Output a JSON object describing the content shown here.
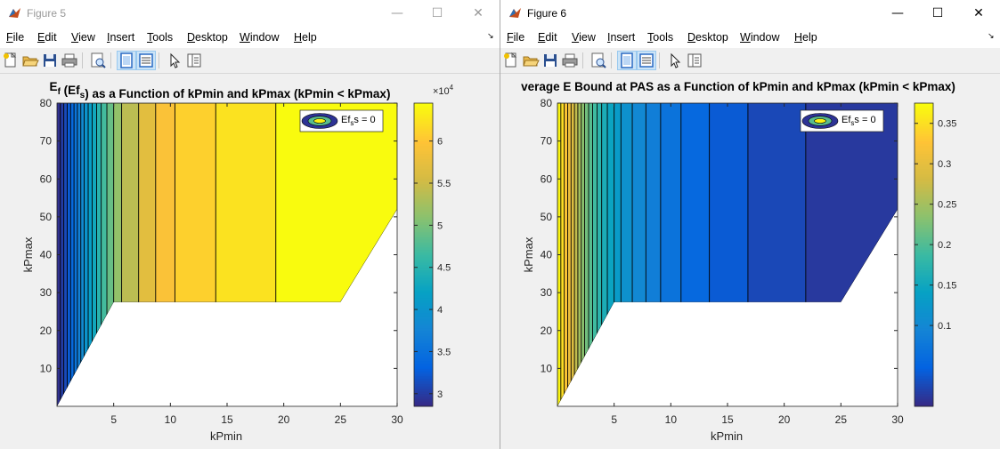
{
  "window_left": {
    "title": "Figure 5",
    "menus": [
      "File",
      "Edit",
      "View",
      "Insert",
      "Tools",
      "Desktop",
      "Window",
      "Help"
    ],
    "menu_mnemonics": [
      "F",
      "E",
      "V",
      "I",
      "T",
      "D",
      "W",
      "H"
    ],
    "controls": {
      "minimize": "—",
      "maximize": "☐",
      "close": "✕"
    }
  },
  "window_right": {
    "title": "Figure 6",
    "menus": [
      "File",
      "Edit",
      "View",
      "Insert",
      "Tools",
      "Desktop",
      "Window",
      "Help"
    ],
    "menu_mnemonics": [
      "F",
      "E",
      "V",
      "I",
      "T",
      "D",
      "W",
      "H"
    ],
    "controls": {
      "minimize": "—",
      "maximize": "☐",
      "close": "✕"
    }
  },
  "toolbar_icons": [
    "new-figure-icon",
    "open-file-icon",
    "save-icon",
    "print-icon",
    "print-preview-icon",
    "dock-figure-icon",
    "property-editor-icon",
    "edit-plot-pointer-icon",
    "plot-browser-icon"
  ],
  "colors": {
    "accent_pressed": "#cce4f7",
    "menu_bg": "#ffffff",
    "window_bg": "#f0f0f0"
  },
  "chart_data": [
    {
      "type": "contourf",
      "title_parts": {
        "main": "E",
        "sub": "f",
        "rest1": " (Ef",
        "sub2": "s",
        "rest2": ") as a Function of kPmin and kPmax (kPmin < kPmax)"
      },
      "xlabel": "kPmin",
      "ylabel": "kPmax",
      "xlim": [
        0,
        30
      ],
      "ylim": [
        0,
        80
      ],
      "xticks": [
        5,
        10,
        15,
        20,
        25,
        30
      ],
      "yticks": [
        10,
        20,
        30,
        40,
        50,
        60,
        70,
        80
      ],
      "legend": {
        "label_main": "Ef",
        "label_sub": "s",
        "label_rest": "s = 0",
        "placement": "top-right"
      },
      "colorbar": {
        "exponent_text": "×10",
        "exponent": "4",
        "ticks": [
          3,
          3.5,
          4,
          4.5,
          5,
          5.5,
          6
        ],
        "clim": [
          2.85,
          6.45
        ]
      },
      "valid_region": {
        "polygon": [
          [
            0,
            0
          ],
          [
            5,
            27.5
          ],
          [
            25,
            27.5
          ],
          [
            30,
            52
          ],
          [
            30,
            80
          ],
          [
            0,
            80
          ]
        ]
      },
      "contour_lines_x": [
        0.3,
        0.6,
        0.9,
        1.2,
        1.5,
        1.8,
        2.1,
        2.4,
        2.75,
        3.1,
        3.5,
        3.9,
        4.4,
        5,
        5.7,
        7.2,
        8.7,
        10.4,
        14,
        19.3
      ],
      "band_values": [
        2.9,
        3.0,
        3.1,
        3.25,
        3.4,
        3.55,
        3.7,
        3.85,
        4.0,
        4.15,
        4.3,
        4.5,
        4.7,
        4.9,
        5.15,
        5.4,
        5.7,
        5.95,
        6.1,
        6.25,
        6.45
      ]
    },
    {
      "type": "contourf",
      "title": "verage E Bound at PAS as a Function of kPmin and kPmax (kPmin < kPmax)",
      "xlabel": "kPmin",
      "ylabel": "kPmax",
      "xlim": [
        0,
        30
      ],
      "ylim": [
        0,
        80
      ],
      "xticks": [
        5,
        10,
        15,
        20,
        25,
        30
      ],
      "yticks": [
        10,
        20,
        30,
        40,
        50,
        60,
        70,
        80
      ],
      "legend": {
        "label_main": "Ef",
        "label_sub": "s",
        "label_rest": "s = 0",
        "placement": "top-right"
      },
      "colorbar": {
        "ticks": [
          0.1,
          0.15,
          0.2,
          0.25,
          0.3,
          0.35
        ],
        "clim": [
          0.0,
          0.375
        ]
      },
      "valid_region": {
        "polygon": [
          [
            0,
            0
          ],
          [
            5,
            27.5
          ],
          [
            25,
            27.5
          ],
          [
            30,
            52
          ],
          [
            30,
            80
          ],
          [
            0,
            80
          ]
        ]
      },
      "contour_lines_x": [
        0.3,
        0.6,
        0.9,
        1.2,
        1.5,
        1.8,
        2.1,
        2.4,
        2.75,
        3.1,
        3.5,
        3.9,
        4.4,
        5,
        5.6,
        6.6,
        7.8,
        9.1,
        10.9,
        13.4,
        16.8,
        21.9
      ],
      "band_values": [
        0.37,
        0.35,
        0.33,
        0.31,
        0.29,
        0.27,
        0.25,
        0.235,
        0.22,
        0.205,
        0.19,
        0.175,
        0.16,
        0.145,
        0.13,
        0.115,
        0.1,
        0.085,
        0.07,
        0.055,
        0.04,
        0.025,
        0.012
      ]
    }
  ]
}
